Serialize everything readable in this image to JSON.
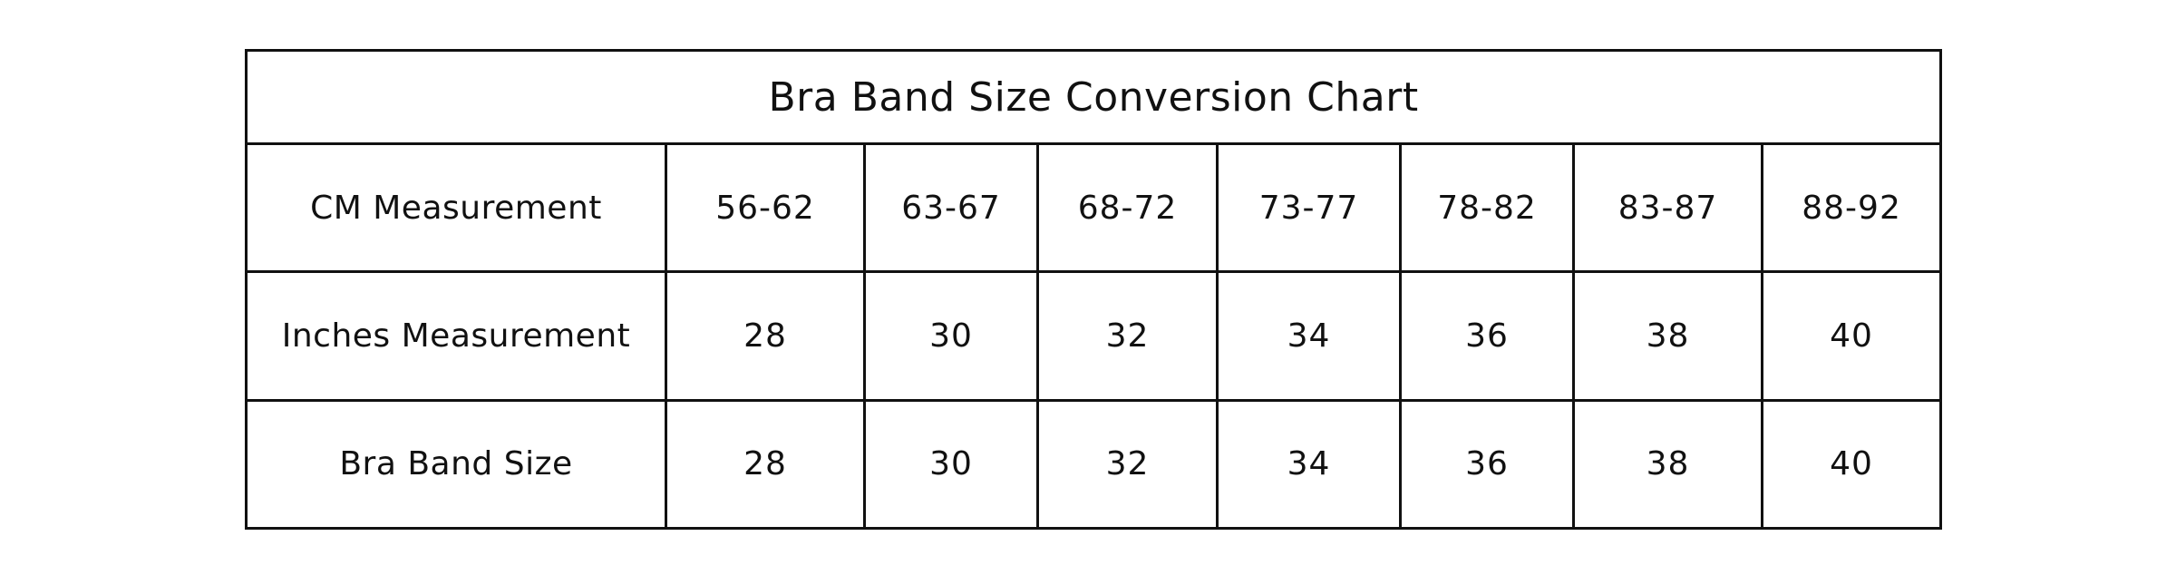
{
  "table": {
    "title": "Bra Band Size Conversion Chart",
    "rows": [
      {
        "label": "CM Measurement",
        "values": [
          "56-62",
          "63-67",
          "68-72",
          "73-77",
          "78-82",
          "83-87",
          "88-92"
        ]
      },
      {
        "label": "Inches Measurement",
        "values": [
          "28",
          "30",
          "32",
          "34",
          "36",
          "38",
          "40"
        ]
      },
      {
        "label": "Bra Band Size",
        "values": [
          "28",
          "30",
          "32",
          "34",
          "36",
          "38",
          "40"
        ]
      }
    ]
  }
}
